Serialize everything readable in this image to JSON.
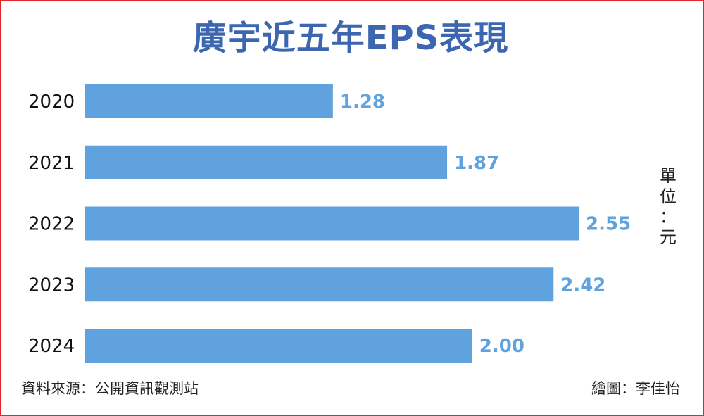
{
  "title": "廣宇近五年EPS表現",
  "unit": [
    "單",
    "位",
    "：",
    "元"
  ],
  "source": "資料來源：公開資訊觀測站",
  "credit": "繪圖：李佳怡",
  "colors": {
    "bar": "#5fa2dd",
    "value_label": "#5fa2dd",
    "title": "#3c66b0",
    "border": "#e3262f"
  },
  "chart_data": {
    "type": "bar",
    "orientation": "horizontal",
    "title": "廣宇近五年EPS表現",
    "categories": [
      "2020",
      "2021",
      "2022",
      "2023",
      "2024"
    ],
    "values": [
      1.28,
      1.87,
      2.55,
      2.42,
      2.0
    ],
    "value_labels": [
      "1.28",
      "1.87",
      "2.55",
      "2.42",
      "2.00"
    ],
    "xlim": [
      0,
      2.55
    ],
    "grid": false,
    "legend": "none"
  }
}
